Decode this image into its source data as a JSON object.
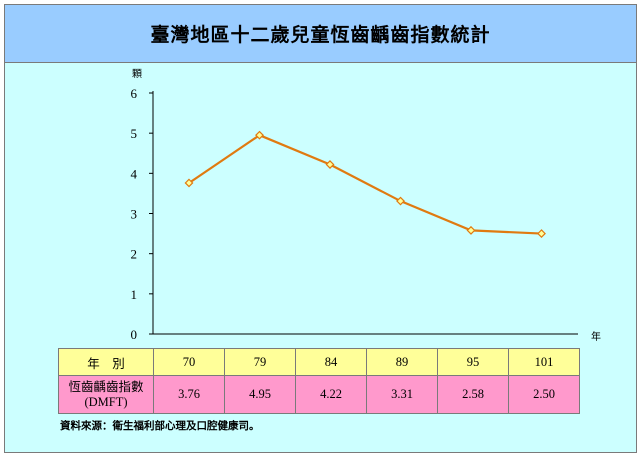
{
  "title": "臺灣地區十二歲兒童恆齒齲齒指數統計",
  "chart_data": {
    "type": "line",
    "title": "臺灣地區十二歲兒童恆齒齲齒指數統計",
    "x": [
      "70",
      "79",
      "84",
      "89",
      "95",
      "101"
    ],
    "series": [
      {
        "values": [
          3.76,
          4.95,
          4.22,
          3.31,
          2.58,
          2.5
        ]
      }
    ],
    "xlabel": "年",
    "ylabel": "顆",
    "ylim": [
      0,
      6
    ],
    "yticks": [
      "0",
      "1",
      "2",
      "3",
      "4",
      "5",
      "6"
    ],
    "line_color": "#e07a10",
    "marker_fill": "#ffff99",
    "grid": false
  },
  "table": {
    "year_header": "年　別",
    "value_header_line1": "恆齒齲齒指數",
    "value_header_line2": "(DMFT)",
    "years": [
      "70",
      "79",
      "84",
      "89",
      "95",
      "101"
    ],
    "values": [
      "3.76",
      "4.95",
      "4.22",
      "3.31",
      "2.58",
      "2.50"
    ]
  },
  "source": "資料來源：衛生福利部心理及口腔健康司。",
  "colors": {
    "title_bg": "#99ccff",
    "panel_bg": "#ccffff",
    "year_row_bg": "#ffff99",
    "value_row_bg": "#ff99cc"
  }
}
